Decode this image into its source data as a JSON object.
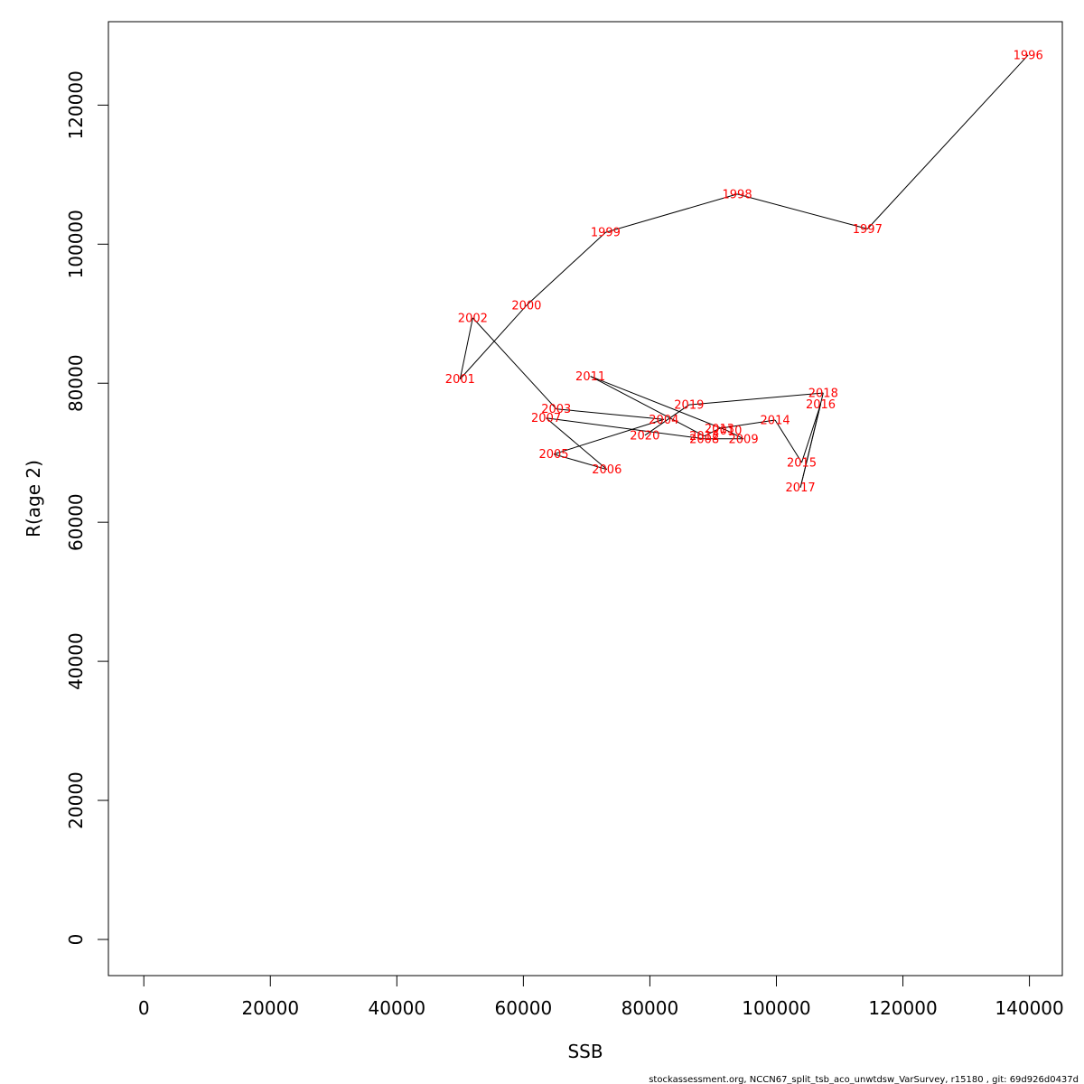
{
  "chart_data": {
    "type": "line",
    "xlabel": "SSB",
    "ylabel": "R(age 2)",
    "xlim": [
      -5600,
      145200
    ],
    "ylim": [
      -5200,
      132000
    ],
    "xticks": [
      0,
      20000,
      40000,
      60000,
      80000,
      100000,
      120000,
      140000
    ],
    "yticks": [
      0,
      20000,
      40000,
      60000,
      80000,
      100000,
      120000
    ],
    "grid": false,
    "points": [
      {
        "label": "1996",
        "x": 139800,
        "y": 127200
      },
      {
        "label": "1997",
        "x": 114400,
        "y": 102200
      },
      {
        "label": "1998",
        "x": 93800,
        "y": 107200
      },
      {
        "label": "1999",
        "x": 73000,
        "y": 101700
      },
      {
        "label": "2000",
        "x": 60500,
        "y": 91200
      },
      {
        "label": "2001",
        "x": 50000,
        "y": 80600
      },
      {
        "label": "2002",
        "x": 52000,
        "y": 89400
      },
      {
        "label": "2003",
        "x": 65200,
        "y": 76300
      },
      {
        "label": "2004",
        "x": 82200,
        "y": 74800
      },
      {
        "label": "2005",
        "x": 64800,
        "y": 69800
      },
      {
        "label": "2006",
        "x": 73200,
        "y": 67600
      },
      {
        "label": "2007",
        "x": 63600,
        "y": 75000
      },
      {
        "label": "2008",
        "x": 88600,
        "y": 72000
      },
      {
        "label": "2009",
        "x": 94800,
        "y": 72000
      },
      {
        "label": "2010",
        "x": 92200,
        "y": 73200
      },
      {
        "label": "2011",
        "x": 70600,
        "y": 81000
      },
      {
        "label": "2012",
        "x": 88600,
        "y": 72400
      },
      {
        "label": "2013",
        "x": 91000,
        "y": 73500
      },
      {
        "label": "2014",
        "x": 99800,
        "y": 74700
      },
      {
        "label": "2015",
        "x": 104000,
        "y": 68600
      },
      {
        "label": "2016",
        "x": 107000,
        "y": 77000
      },
      {
        "label": "2017",
        "x": 103800,
        "y": 65000
      },
      {
        "label": "2018",
        "x": 107400,
        "y": 78600
      },
      {
        "label": "2019",
        "x": 86200,
        "y": 76900
      },
      {
        "label": "2020",
        "x": 79200,
        "y": 72500
      }
    ],
    "line_color": "#000000",
    "label_color": "#ff0000"
  },
  "footer": "stockassessment.org, NCCN67_split_tsb_aco_unwtdsw_VarSurvey, r15180 , git: 69d926d0437d"
}
